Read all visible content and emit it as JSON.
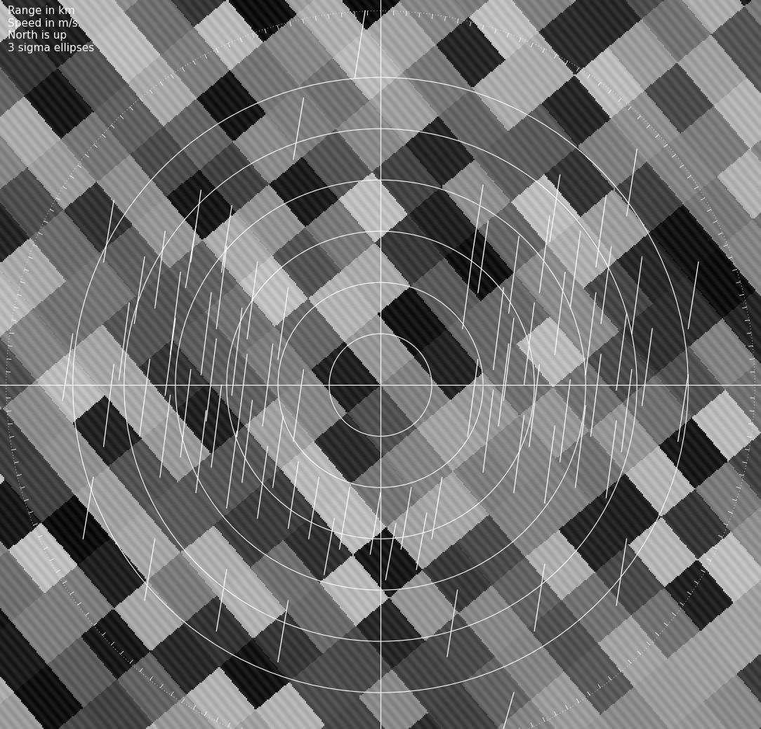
{
  "chart_data": {
    "type": "track_plot",
    "annotations": [
      "Range in km",
      "Speed in m/s",
      "North is up",
      "3 sigma ellipses"
    ],
    "xlim": [
      -7.42,
      7.42
    ],
    "ylim": [
      -6.71,
      7.51
    ],
    "tick_labels": false,
    "color": "#ffffff",
    "range_rings": [
      1,
      2,
      3,
      4,
      5,
      6
    ],
    "outer_ring": 7.3,
    "tracks": [
      [
        -4.6,
        2.5,
        -4.8,
        1.2
      ],
      [
        -4.2,
        3.0,
        -4.4,
        1.5
      ],
      [
        -3.9,
        2.2,
        -4.1,
        0.6
      ],
      [
        -3.6,
        3.1,
        -3.8,
        1.9
      ],
      [
        -3.3,
        1.8,
        -3.5,
        0.2
      ],
      [
        -3.0,
        2.7,
        -3.2,
        1.1
      ],
      [
        -2.7,
        1.5,
        -2.9,
        -0.2
      ],
      [
        -2.4,
        2.4,
        -2.6,
        0.9
      ],
      [
        -2.1,
        0.8,
        -2.3,
        -0.8
      ],
      [
        -1.8,
        1.9,
        -2.0,
        0.5
      ],
      [
        -4.5,
        0.5,
        -4.7,
        -1.0
      ],
      [
        -4.1,
        -0.2,
        -4.3,
        -1.8
      ],
      [
        -3.7,
        0.3,
        -3.9,
        -1.4
      ],
      [
        -3.4,
        -0.5,
        -3.6,
        -2.1
      ],
      [
        -3.1,
        0.0,
        -3.3,
        -1.6
      ],
      [
        -2.8,
        -0.9,
        -3.0,
        -2.4
      ],
      [
        -2.5,
        -0.3,
        -2.7,
        -1.9
      ],
      [
        -2.2,
        -1.2,
        -2.4,
        -2.6
      ],
      [
        -1.9,
        -0.6,
        -2.1,
        -2.0
      ],
      [
        -1.6,
        -1.5,
        -1.8,
        -2.8
      ],
      [
        -4.9,
        1.6,
        -5.1,
        0.1
      ],
      [
        -5.2,
        0.4,
        -5.4,
        -1.2
      ],
      [
        -3.5,
        3.8,
        -3.7,
        2.4
      ],
      [
        -2.9,
        3.5,
        -3.1,
        2.2
      ],
      [
        -4.0,
        1.3,
        -4.2,
        -0.2
      ],
      [
        -3.2,
        0.9,
        -3.4,
        -0.7
      ],
      [
        -2.6,
        0.6,
        -2.8,
        -1.0
      ],
      [
        -1.5,
        0.3,
        -1.7,
        -1.1
      ],
      [
        1.8,
        2.6,
        1.6,
        1.1
      ],
      [
        2.1,
        3.2,
        1.9,
        1.8
      ],
      [
        2.4,
        1.9,
        2.2,
        0.3
      ],
      [
        2.7,
        2.9,
        2.5,
        1.4
      ],
      [
        3.0,
        1.6,
        2.8,
        0.0
      ],
      [
        3.3,
        3.3,
        3.1,
        1.8
      ],
      [
        3.6,
        2.2,
        3.4,
        0.6
      ],
      [
        3.9,
        3.0,
        3.7,
        1.5
      ],
      [
        4.2,
        1.8,
        4.0,
        0.2
      ],
      [
        4.5,
        2.7,
        4.3,
        1.2
      ],
      [
        4.8,
        1.4,
        4.6,
        -0.1
      ],
      [
        5.1,
        2.5,
        4.9,
        1.0
      ],
      [
        1.9,
        0.5,
        1.7,
        -1.0
      ],
      [
        2.2,
        -0.1,
        2.0,
        -1.7
      ],
      [
        2.5,
        0.8,
        2.3,
        -0.8
      ],
      [
        2.8,
        -0.6,
        2.6,
        -2.1
      ],
      [
        3.1,
        0.4,
        2.9,
        -1.2
      ],
      [
        3.4,
        -0.8,
        3.2,
        -2.3
      ],
      [
        3.7,
        0.1,
        3.5,
        -1.5
      ],
      [
        4.0,
        -0.4,
        3.8,
        -2.0
      ],
      [
        4.3,
        0.6,
        4.1,
        -1.0
      ],
      [
        4.6,
        -0.7,
        4.4,
        -2.2
      ],
      [
        4.9,
        0.3,
        4.7,
        -1.3
      ],
      [
        5.3,
        1.1,
        5.1,
        -0.4
      ],
      [
        2.0,
        3.9,
        1.8,
        2.6
      ],
      [
        3.5,
        4.1,
        3.3,
        2.8
      ],
      [
        4.4,
        3.7,
        4.2,
        2.3
      ],
      [
        2.6,
        1.3,
        2.4,
        -0.3
      ],
      [
        -1.2,
        -1.8,
        -1.4,
        -3.0
      ],
      [
        -0.6,
        -2.0,
        -0.8,
        -3.2
      ],
      [
        0.0,
        -2.1,
        -0.2,
        -3.3
      ],
      [
        0.6,
        -2.0,
        0.4,
        -3.2
      ],
      [
        1.2,
        -1.8,
        1.0,
        -3.0
      ],
      [
        -0.9,
        -2.6,
        -1.1,
        -3.7
      ],
      [
        0.3,
        -2.7,
        0.1,
        -3.8
      ],
      [
        0.9,
        -2.5,
        0.7,
        -3.6
      ],
      [
        -6.0,
        1.0,
        -6.2,
        -0.3
      ],
      [
        -5.6,
        -1.8,
        -5.8,
        -3.0
      ],
      [
        -4.4,
        -3.0,
        -4.6,
        -4.2
      ],
      [
        -3.0,
        -3.6,
        -3.2,
        -4.8
      ],
      [
        -1.8,
        -4.2,
        -2.0,
        -5.4
      ],
      [
        1.5,
        -4.0,
        1.3,
        -5.3
      ],
      [
        3.2,
        -3.5,
        3.0,
        -4.8
      ],
      [
        4.8,
        -3.0,
        4.6,
        -4.3
      ],
      [
        6.0,
        0.2,
        5.8,
        -1.1
      ],
      [
        6.2,
        2.4,
        6.0,
        1.1
      ],
      [
        5.0,
        4.6,
        4.8,
        3.3
      ],
      [
        -5.2,
        3.6,
        -5.4,
        2.4
      ],
      [
        -1.5,
        5.6,
        -1.7,
        4.4
      ],
      [
        -0.3,
        7.3,
        -0.5,
        6.0
      ],
      [
        2.6,
        -6.0,
        2.4,
        -6.7
      ]
    ]
  }
}
